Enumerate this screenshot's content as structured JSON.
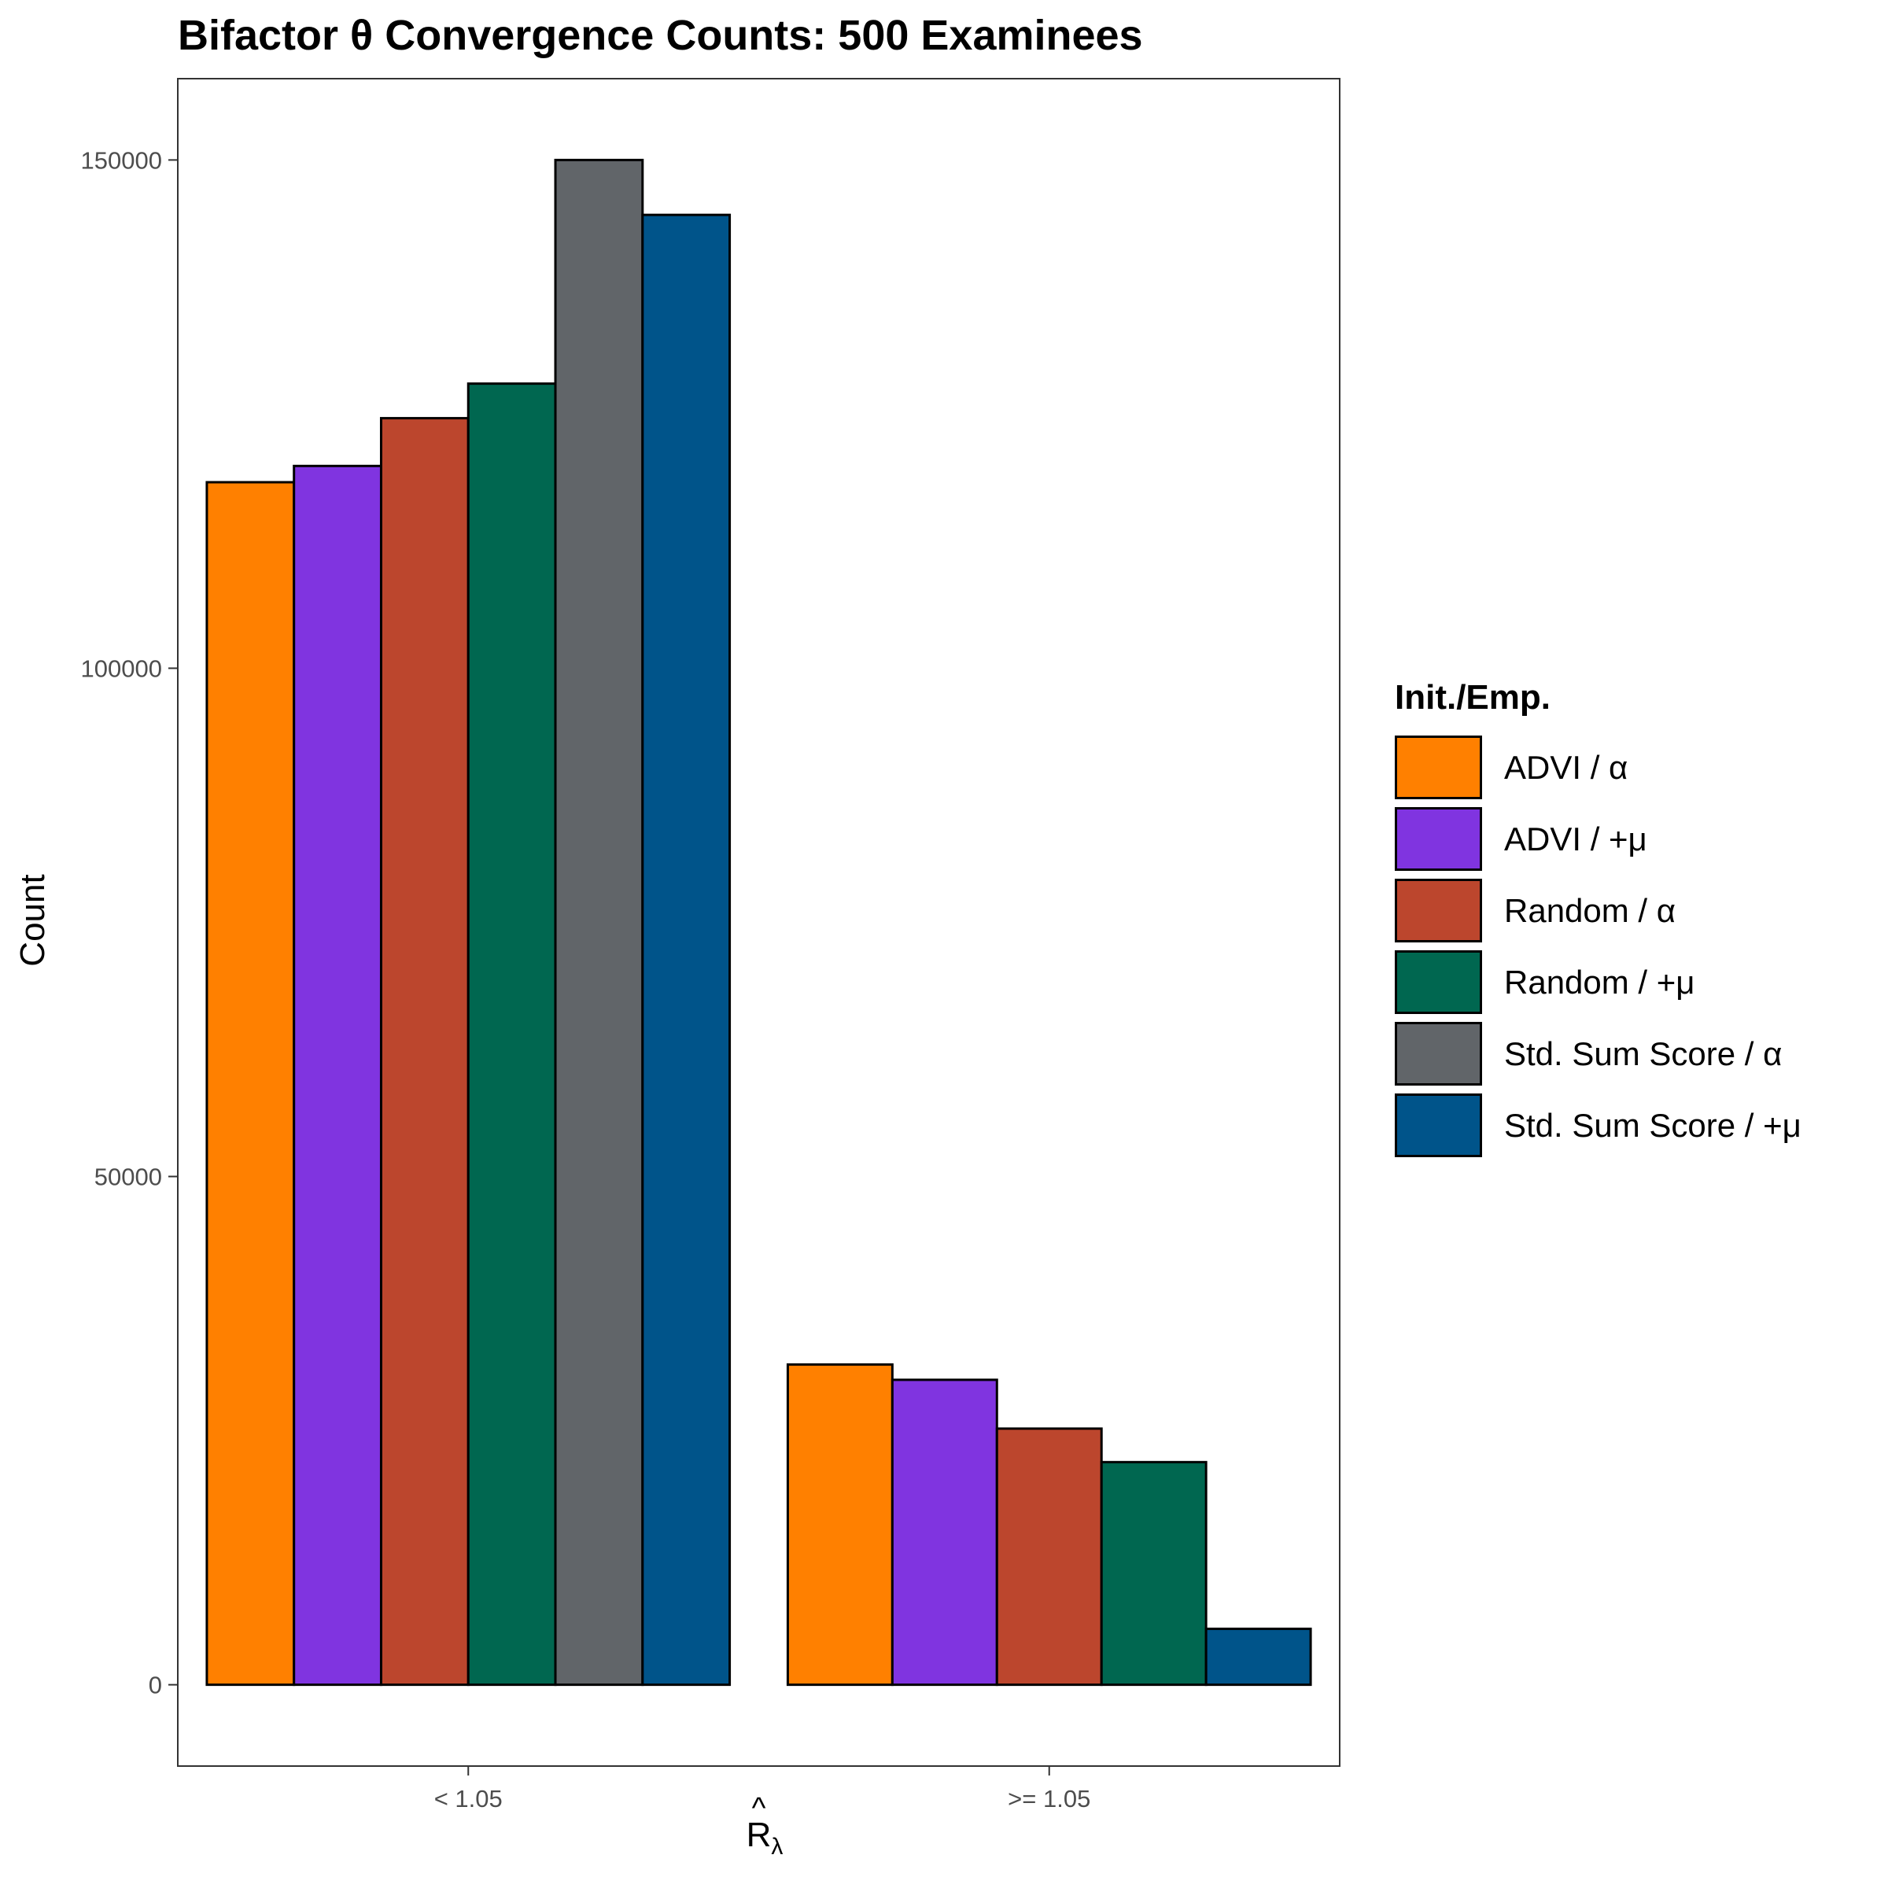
{
  "chart_data": {
    "type": "bar",
    "title": "Bifactor θ Convergence Counts: 500 Examinees",
    "xlabel_base": "R",
    "xlabel_sub": "λ",
    "ylabel": "Count",
    "ylim": [
      -8000,
      158000
    ],
    "yticks": [
      "0",
      "50000",
      "100000",
      "150000"
    ],
    "ytick_values": [
      0,
      50000,
      100000,
      150000
    ],
    "categories": [
      "< 1.05",
      ">= 1.05"
    ],
    "legend_title": "Init./Emp.",
    "legend_position": "right",
    "grid": false,
    "series": [
      {
        "name": "ADVI / α",
        "color": "#FF8000",
        "values": [
          118300,
          31500
        ]
      },
      {
        "name": "ADVI / +μ",
        "color": "#8034E0",
        "values": [
          119900,
          30000
        ]
      },
      {
        "name": "Random / α",
        "color": "#BC462D",
        "values": [
          124600,
          25200
        ]
      },
      {
        "name": "Random / +μ",
        "color": "#006750",
        "values": [
          128000,
          21900
        ]
      },
      {
        "name": "Std. Sum Score / α",
        "color": "#616569",
        "values": [
          150000,
          null
        ]
      },
      {
        "name": "Std. Sum Score / +μ",
        "color": "#00548A",
        "values": [
          144600,
          5500
        ]
      }
    ]
  }
}
